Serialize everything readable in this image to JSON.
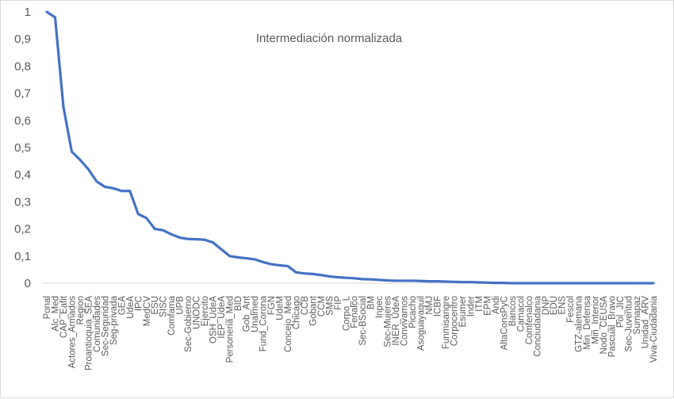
{
  "chart_data": {
    "type": "line",
    "title": "Intermediación normalizada",
    "xlabel": "",
    "ylabel": "",
    "ylim": [
      0,
      1
    ],
    "yticks": [
      "0",
      "0,1",
      "0,2",
      "0,3",
      "0,4",
      "0,5",
      "0,6",
      "0,7",
      "0,8",
      "0,9",
      "1"
    ],
    "grid": false,
    "legend": "none",
    "line_color": "#4472C4",
    "categories": [
      "Ponal",
      "Alc_Med",
      "CAP_Eafit",
      "Actores_Armados",
      "Region",
      "Proantioquia_SEA",
      "Comunidades",
      "Sec-Seguridad",
      "Seg-privada",
      "GEA",
      "UdeA",
      "IPC",
      "MedCV",
      "ESU",
      "SISC",
      "Comfama",
      "UPB",
      "Sec-Gobierno",
      "UNODC",
      "Ejercito",
      "OSH_UdeA",
      "IEP_UdeA",
      "Personeria_Med",
      "BID",
      "Gob_Ant",
      "Unalmed",
      "Fund_Corona",
      "FGN",
      "UdeM",
      "Concejo_Med",
      "Chicago",
      "CCB",
      "Gobant",
      "CCM",
      "SMS",
      "FIP",
      "Corpo_L",
      "Fenalco",
      "Sec-BSocial",
      "BM",
      "Inpec",
      "Sec-Mujeres",
      "INER_UdeA",
      "Convivamos",
      "Picacho",
      "Asoguayaquil",
      "NMJ",
      "ICBF",
      "Funmisangre",
      "Corpocentro",
      "Esumer",
      "Inder",
      "ITM",
      "EPM",
      "Andi",
      "AltaConsPyC",
      "Bancos",
      "Camacol",
      "Comfenalco",
      "Conciudadania",
      "DNP",
      "EDU",
      "ENS",
      "Fescol",
      "GTZ-alemana",
      "Min_Defensa",
      "Min_Interior",
      "Nodo_CEUSA",
      "Pascual_Bravo",
      "Pol_JIC",
      "Sec-Juventud",
      "Sumapaz",
      "Unidad_ARV",
      "Viva-Ciudadania"
    ],
    "series": [
      {
        "values": [
          1.0,
          0.98,
          0.65,
          0.485,
          0.455,
          0.42,
          0.375,
          0.355,
          0.35,
          0.34,
          0.34,
          0.255,
          0.24,
          0.2,
          0.195,
          0.18,
          0.168,
          0.163,
          0.162,
          0.16,
          0.15,
          0.125,
          0.1,
          0.095,
          0.092,
          0.088,
          0.078,
          0.07,
          0.066,
          0.063,
          0.04,
          0.036,
          0.034,
          0.03,
          0.025,
          0.022,
          0.02,
          0.018,
          0.015,
          0.014,
          0.012,
          0.01,
          0.009,
          0.009,
          0.009,
          0.008,
          0.007,
          0.007,
          0.006,
          0.005,
          0.004,
          0.004,
          0.003,
          0.002,
          0.001,
          0.001,
          0.0,
          0.0,
          0.0,
          0.0,
          0.0,
          0.0,
          0.0,
          0.0,
          0.0,
          0.0,
          0.0,
          0.0,
          0.0,
          0.0,
          0.0,
          0.0,
          0.0,
          0.0
        ]
      }
    ]
  }
}
